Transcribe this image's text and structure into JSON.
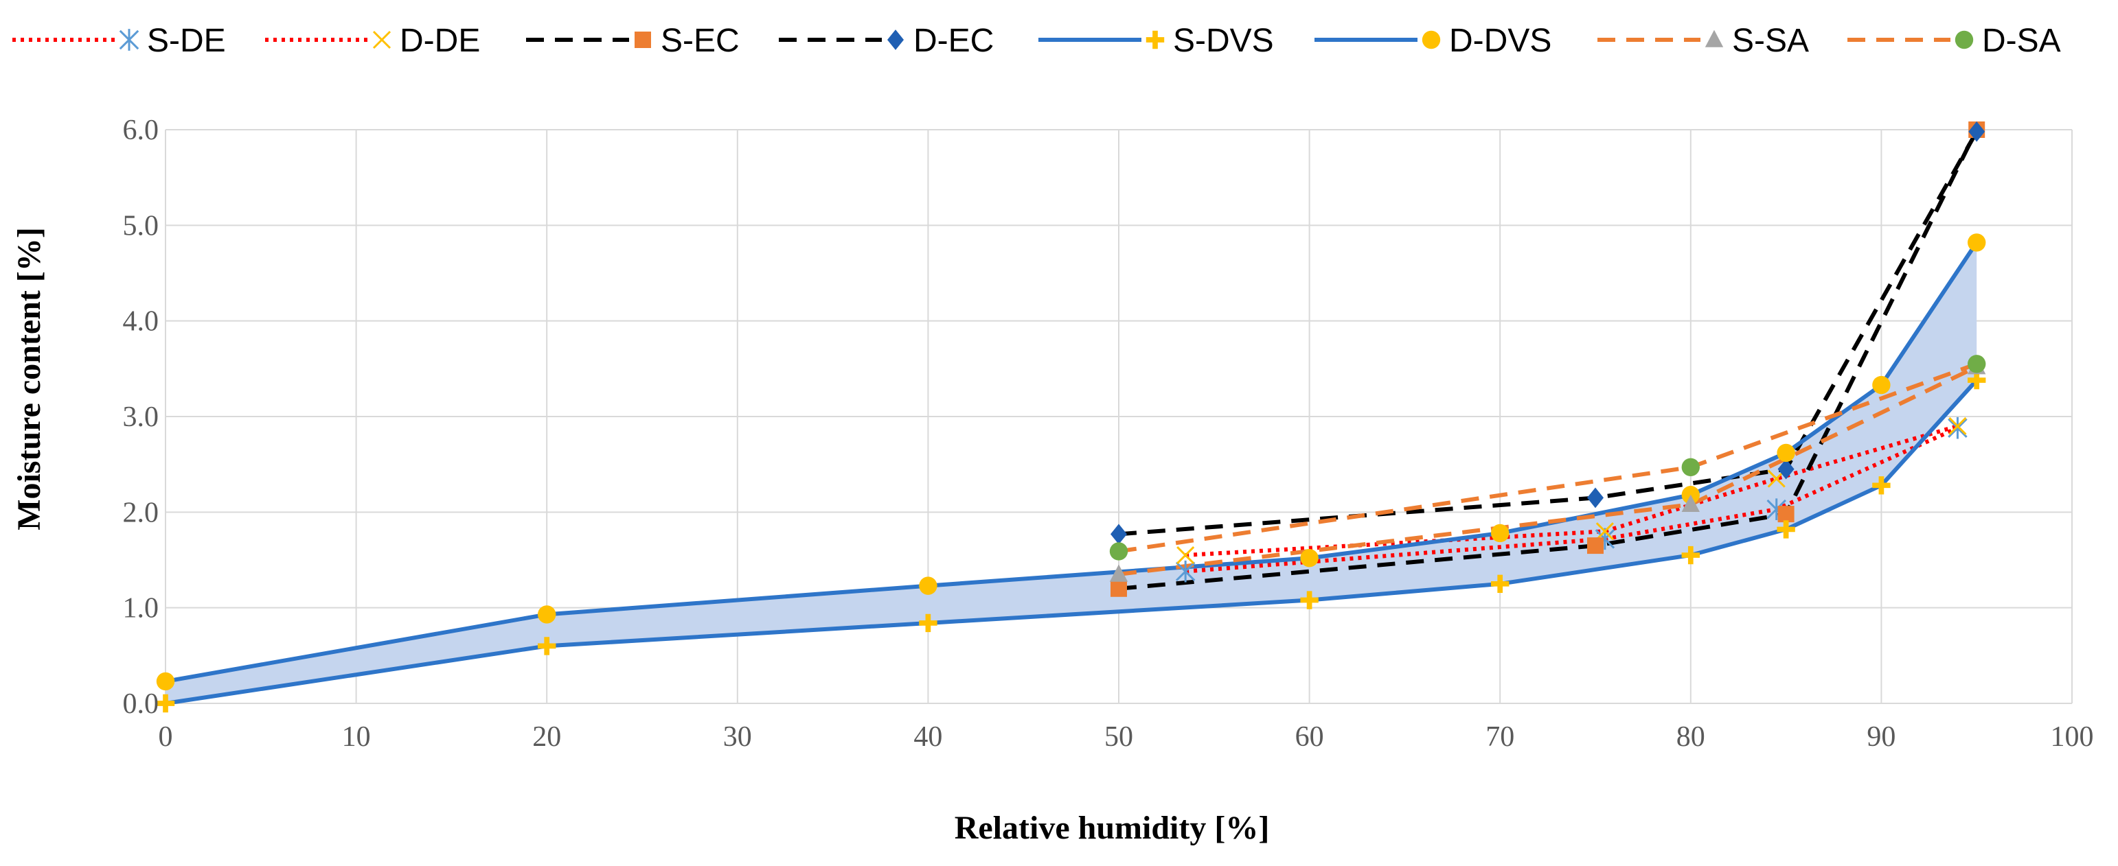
{
  "chart_data": {
    "type": "line",
    "title": "",
    "xlabel": "Relative humidity [%]",
    "ylabel": "Moisture content [%]",
    "xlim": [
      0,
      100
    ],
    "ylim": [
      0,
      6
    ],
    "xticks": [
      "0",
      "10",
      "20",
      "30",
      "40",
      "50",
      "60",
      "70",
      "80",
      "90",
      "100"
    ],
    "yticks": [
      "0.0",
      "1.0",
      "2.0",
      "3.0",
      "4.0",
      "5.0",
      "6.0"
    ],
    "grid": true,
    "legend_position": "top",
    "shaded_band": {
      "lower": "S-DVS",
      "upper": "D-DVS",
      "color": "#c5d5ee"
    },
    "series": [
      {
        "name": "S-DE",
        "color": "#ff0000",
        "line": "dotted",
        "marker": "asterisk",
        "marker_color": "#5b9bd5",
        "x": [
          53.5,
          75.5,
          84.5,
          94
        ],
        "y": [
          1.38,
          1.72,
          2.03,
          2.88
        ]
      },
      {
        "name": "D-DE",
        "color": "#ff0000",
        "line": "dotted",
        "marker": "cross",
        "marker_color": "#ffc000",
        "x": [
          53.5,
          75.5,
          84.5,
          94
        ],
        "y": [
          1.55,
          1.8,
          2.35,
          2.9
        ]
      },
      {
        "name": "S-EC",
        "color": "#000000",
        "line": "dashed",
        "marker": "square",
        "marker_color": "#ed7d31",
        "x": [
          50,
          75,
          85,
          95
        ],
        "y": [
          1.2,
          1.65,
          1.98,
          6.0
        ]
      },
      {
        "name": "D-EC",
        "color": "#000000",
        "line": "dashed",
        "marker": "diamond",
        "marker_color": "#1f5fb3",
        "x": [
          50,
          75,
          85,
          95
        ],
        "y": [
          1.77,
          2.15,
          2.45,
          5.98
        ]
      },
      {
        "name": "S-DVS",
        "color": "#2e75c9",
        "line": "solid",
        "marker": "plus",
        "marker_color": "#ffc000",
        "x": [
          0,
          20,
          40,
          60,
          70,
          80,
          85,
          90,
          95
        ],
        "y": [
          0.0,
          0.6,
          0.84,
          1.08,
          1.25,
          1.55,
          1.82,
          2.28,
          3.38
        ]
      },
      {
        "name": "D-DVS",
        "color": "#2e75c9",
        "line": "solid",
        "marker": "circle",
        "marker_color": "#ffc000",
        "x": [
          0,
          20,
          40,
          60,
          70,
          80,
          85,
          90,
          95
        ],
        "y": [
          0.23,
          0.93,
          1.23,
          1.52,
          1.78,
          2.18,
          2.62,
          3.33,
          4.82
        ]
      },
      {
        "name": "S-SA",
        "color": "#ed7d31",
        "line": "dashed",
        "marker": "triangle",
        "marker_color": "#a5a5a5",
        "x": [
          50,
          80,
          95
        ],
        "y": [
          1.35,
          2.08,
          3.52
        ]
      },
      {
        "name": "D-SA",
        "color": "#ed7d31",
        "line": "dashed",
        "marker": "circle",
        "marker_color": "#70ad47",
        "x": [
          50,
          80,
          95
        ],
        "y": [
          1.59,
          2.47,
          3.55
        ]
      }
    ]
  }
}
